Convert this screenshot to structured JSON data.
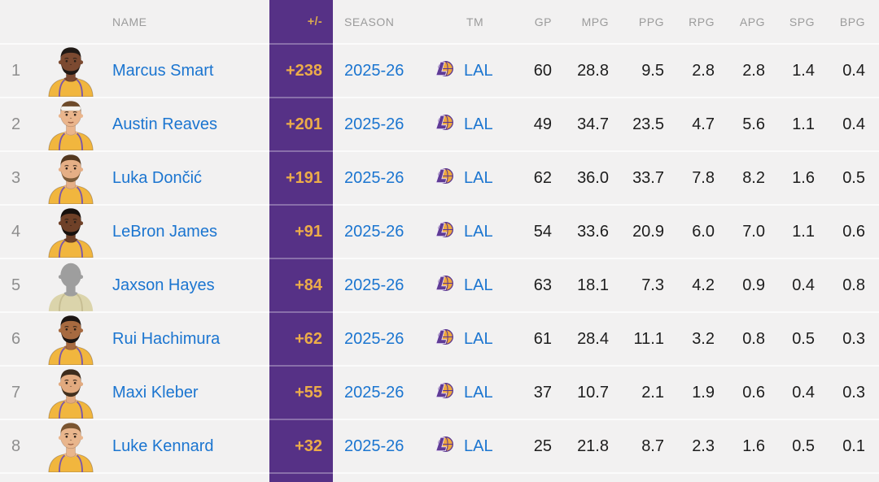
{
  "colors": {
    "accent_purple": "#563186",
    "accent_gold": "#ecac49",
    "link_blue": "#1b75d0",
    "header_gray": "#9b9b9b",
    "row_background": "#f2f1f1",
    "jersey_gold": "#f1b63e"
  },
  "table": {
    "headers": {
      "name": "NAME",
      "plus_minus": "+/-",
      "season": "SEASON",
      "team": "TM",
      "stats": [
        "GP",
        "MPG",
        "PPG",
        "RPG",
        "APG",
        "SPG",
        "BPG"
      ]
    },
    "rows": [
      {
        "rank": "1",
        "name": "Marcus Smart",
        "plus_minus": "+238",
        "season": "2025-26",
        "team": "LAL",
        "stats": [
          "60",
          "28.8",
          "9.5",
          "2.8",
          "2.8",
          "1.4",
          "0.4"
        ],
        "avatar": {
          "skin": "#7c4a31",
          "hair": "#201915",
          "beard": "#201915",
          "headband": false,
          "silhouette": false
        }
      },
      {
        "rank": "2",
        "name": "Austin Reaves",
        "plus_minus": "+201",
        "season": "2025-26",
        "team": "LAL",
        "stats": [
          "49",
          "34.7",
          "23.5",
          "4.7",
          "5.6",
          "1.1",
          "0.4"
        ],
        "avatar": {
          "skin": "#eab58c",
          "hair": "#6e4b2a",
          "beard": null,
          "headband": true,
          "silhouette": false
        }
      },
      {
        "rank": "3",
        "name": "Luka Dončić",
        "plus_minus": "+191",
        "season": "2025-26",
        "team": "LAL",
        "stats": [
          "62",
          "36.0",
          "33.7",
          "7.8",
          "8.2",
          "1.6",
          "0.5"
        ],
        "avatar": {
          "skin": "#e5af86",
          "hair": "#53381f",
          "beard": "#7d5c3a",
          "headband": false,
          "silhouette": false
        }
      },
      {
        "rank": "4",
        "name": "LeBron James",
        "plus_minus": "+91",
        "season": "2025-26",
        "team": "LAL",
        "stats": [
          "54",
          "33.6",
          "20.9",
          "6.0",
          "7.0",
          "1.1",
          "0.6"
        ],
        "avatar": {
          "skin": "#6f4128",
          "hair": "#17110d",
          "beard": "#17110d",
          "headband": false,
          "silhouette": false
        }
      },
      {
        "rank": "5",
        "name": "Jaxson Hayes",
        "plus_minus": "+84",
        "season": "2025-26",
        "team": "LAL",
        "stats": [
          "63",
          "18.1",
          "7.3",
          "4.2",
          "0.9",
          "0.4",
          "0.8"
        ],
        "avatar": {
          "skin": "#9e9e9e",
          "hair": null,
          "beard": null,
          "headband": false,
          "silhouette": true
        }
      },
      {
        "rank": "6",
        "name": "Rui Hachimura",
        "plus_minus": "+62",
        "season": "2025-26",
        "team": "LAL",
        "stats": [
          "61",
          "28.4",
          "11.1",
          "3.2",
          "0.8",
          "0.5",
          "0.3"
        ],
        "avatar": {
          "skin": "#a76a40",
          "hair": "#1c1512",
          "beard": "#1c1512",
          "headband": false,
          "silhouette": false
        }
      },
      {
        "rank": "7",
        "name": "Maxi Kleber",
        "plus_minus": "+55",
        "season": "2025-26",
        "team": "LAL",
        "stats": [
          "37",
          "10.7",
          "2.1",
          "1.9",
          "0.6",
          "0.4",
          "0.3"
        ],
        "avatar": {
          "skin": "#e2aa7f",
          "hair": "#3d2c1c",
          "beard": "#42301e",
          "headband": false,
          "silhouette": false
        }
      },
      {
        "rank": "8",
        "name": "Luke Kennard",
        "plus_minus": "+32",
        "season": "2025-26",
        "team": "LAL",
        "stats": [
          "25",
          "21.8",
          "8.7",
          "2.3",
          "1.6",
          "0.5",
          "0.1"
        ],
        "avatar": {
          "skin": "#e9b68d",
          "hair": "#7a5531",
          "beard": null,
          "headband": false,
          "silhouette": false
        }
      }
    ]
  }
}
